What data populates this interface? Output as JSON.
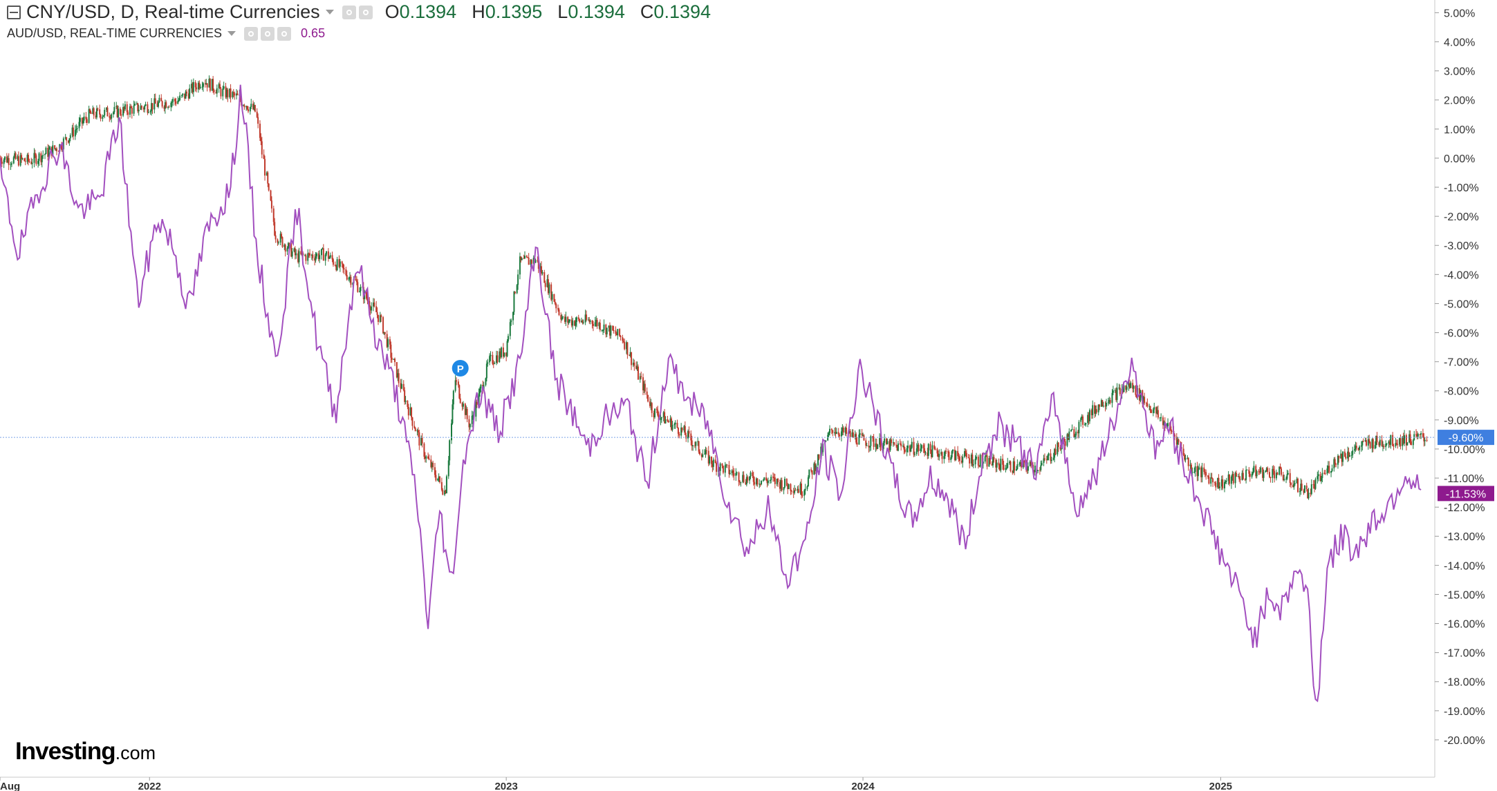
{
  "legend": {
    "main_title": "CNY/USD, D, Real-time Currencies",
    "open_label": "O",
    "open_value": "0.1394",
    "high_label": "H",
    "high_value": "0.1395",
    "low_label": "L",
    "low_value": "0.1394",
    "close_label": "C",
    "close_value": "0.1394",
    "compare_title": "AUD/USD, REAL-TIME CURRENCIES",
    "compare_value": "0.65"
  },
  "brand": {
    "logo_text": "Investing",
    "logo_suffix": ".com"
  },
  "colors": {
    "up": "#1b7a3e",
    "down": "#c0392b",
    "compare": "#a24fbf",
    "last_cny": "#3f7fe0",
    "last_aud": "#8e1a8e",
    "gridline": "#7aa2e8"
  },
  "chart_data": {
    "type": "line",
    "title": "CNY/USD, D, Real-time Currencies",
    "y_axis": {
      "unit": "%",
      "min": -20.5,
      "max": 5.2,
      "ticks": [
        5,
        4,
        3,
        2,
        1,
        0,
        -1,
        -2,
        -3,
        -4,
        -5,
        -6,
        -7,
        -8,
        -9,
        -10,
        -11,
        -12,
        -13,
        -14,
        -15,
        -16,
        -17,
        -18,
        -19,
        -20
      ],
      "tick_labels": [
        "5.00%",
        "4.00%",
        "3.00%",
        "2.00%",
        "1.00%",
        "0.00%",
        "-1.00%",
        "-2.00%",
        "-3.00%",
        "-4.00%",
        "-5.00%",
        "-6.00%",
        "-7.00%",
        "-8.00%",
        "-9.00%",
        "-10.00%",
        "-11.00%",
        "-12.00%",
        "-13.00%",
        "-14.00%",
        "-15.00%",
        "-16.00%",
        "-17.00%",
        "-18.00%",
        "-19.00%",
        "-20.00%"
      ]
    },
    "x_axis": {
      "start": "2021-08-01",
      "end": "2025-08-01",
      "ticks": [
        {
          "date": "2021-08-01",
          "label": "Aug"
        },
        {
          "date": "2022-01-01",
          "label": "2022"
        },
        {
          "date": "2023-01-01",
          "label": "2023"
        },
        {
          "date": "2024-01-01",
          "label": "2024"
        },
        {
          "date": "2025-01-01",
          "label": "2025"
        }
      ]
    },
    "series": [
      {
        "name": "CNY/USD",
        "style": "candles",
        "points": [
          [
            "2021-08-01",
            0.0
          ],
          [
            "2021-09-01",
            -0.1
          ],
          [
            "2021-10-01",
            0.4
          ],
          [
            "2021-11-01",
            1.5
          ],
          [
            "2021-12-01",
            1.6
          ],
          [
            "2022-01-01",
            1.8
          ],
          [
            "2022-02-01",
            2.0
          ],
          [
            "2022-02-25",
            2.7
          ],
          [
            "2022-03-15",
            2.3
          ],
          [
            "2022-04-01",
            2.1
          ],
          [
            "2022-04-20",
            1.6
          ],
          [
            "2022-05-10",
            -2.6
          ],
          [
            "2022-06-01",
            -3.4
          ],
          [
            "2022-07-01",
            -3.3
          ],
          [
            "2022-08-01",
            -4.3
          ],
          [
            "2022-08-25",
            -5.5
          ],
          [
            "2022-09-15",
            -7.8
          ],
          [
            "2022-10-10",
            -10.2
          ],
          [
            "2022-10-31",
            -11.5
          ],
          [
            "2022-11-10",
            -7.6
          ],
          [
            "2022-11-25",
            -9.2
          ],
          [
            "2022-12-15",
            -7.0
          ],
          [
            "2023-01-01",
            -6.6
          ],
          [
            "2023-01-15",
            -3.6
          ],
          [
            "2023-02-01",
            -3.5
          ],
          [
            "2023-03-01",
            -5.6
          ],
          [
            "2023-04-01",
            -5.6
          ],
          [
            "2023-05-01",
            -6.2
          ],
          [
            "2023-06-01",
            -8.7
          ],
          [
            "2023-07-01",
            -9.4
          ],
          [
            "2023-08-01",
            -10.5
          ],
          [
            "2023-09-01",
            -11.0
          ],
          [
            "2023-10-01",
            -11.1
          ],
          [
            "2023-11-01",
            -11.4
          ],
          [
            "2023-12-01",
            -9.3
          ],
          [
            "2024-01-01",
            -9.7
          ],
          [
            "2024-02-01",
            -9.9
          ],
          [
            "2024-03-01",
            -10.0
          ],
          [
            "2024-04-01",
            -10.2
          ],
          [
            "2024-05-01",
            -10.4
          ],
          [
            "2024-06-01",
            -10.6
          ],
          [
            "2024-07-01",
            -10.6
          ],
          [
            "2024-08-01",
            -9.5
          ],
          [
            "2024-09-01",
            -8.4
          ],
          [
            "2024-10-01",
            -7.8
          ],
          [
            "2024-10-20",
            -8.5
          ],
          [
            "2024-11-15",
            -9.5
          ],
          [
            "2024-12-01",
            -10.6
          ],
          [
            "2025-01-01",
            -11.2
          ],
          [
            "2025-02-01",
            -10.8
          ],
          [
            "2025-03-01",
            -10.8
          ],
          [
            "2025-04-01",
            -11.5
          ],
          [
            "2025-05-01",
            -10.3
          ],
          [
            "2025-06-01",
            -9.8
          ],
          [
            "2025-07-01",
            -9.7
          ],
          [
            "2025-08-01",
            -9.6
          ]
        ]
      },
      {
        "name": "AUD/USD",
        "style": "line",
        "points": [
          [
            "2021-08-01",
            -0.5
          ],
          [
            "2021-08-20",
            -3.3
          ],
          [
            "2021-09-10",
            -1.0
          ],
          [
            "2021-10-01",
            0.5
          ],
          [
            "2021-10-20",
            -1.8
          ],
          [
            "2021-11-10",
            -1.5
          ],
          [
            "2021-12-01",
            1.4
          ],
          [
            "2021-12-20",
            -5.0
          ],
          [
            "2022-01-10",
            -2.0
          ],
          [
            "2022-01-25",
            -3.0
          ],
          [
            "2022-02-10",
            -5.2
          ],
          [
            "2022-03-01",
            -2.5
          ],
          [
            "2022-03-25",
            -1.0
          ],
          [
            "2022-04-05",
            2.5
          ],
          [
            "2022-04-20",
            -3.0
          ],
          [
            "2022-05-10",
            -7.0
          ],
          [
            "2022-06-01",
            -1.8
          ],
          [
            "2022-06-20",
            -6.0
          ],
          [
            "2022-07-10",
            -8.8
          ],
          [
            "2022-08-01",
            -3.5
          ],
          [
            "2022-08-20",
            -6.0
          ],
          [
            "2022-09-10",
            -8.0
          ],
          [
            "2022-10-01",
            -11.5
          ],
          [
            "2022-10-13",
            -16.0
          ],
          [
            "2022-10-25",
            -12.0
          ],
          [
            "2022-11-05",
            -14.8
          ],
          [
            "2022-11-20",
            -10.0
          ],
          [
            "2022-12-05",
            -8.0
          ],
          [
            "2022-12-25",
            -9.4
          ],
          [
            "2023-01-15",
            -7.0
          ],
          [
            "2023-02-01",
            -3.0
          ],
          [
            "2023-02-20",
            -7.5
          ],
          [
            "2023-03-10",
            -8.8
          ],
          [
            "2023-03-25",
            -10.0
          ],
          [
            "2023-04-10",
            -9.0
          ],
          [
            "2023-05-05",
            -8.5
          ],
          [
            "2023-05-25",
            -11.3
          ],
          [
            "2023-06-15",
            -7.0
          ],
          [
            "2023-07-10",
            -8.5
          ],
          [
            "2023-07-25",
            -9.0
          ],
          [
            "2023-08-15",
            -11.7
          ],
          [
            "2023-09-05",
            -13.5
          ],
          [
            "2023-09-25",
            -12.0
          ],
          [
            "2023-10-15",
            -14.5
          ],
          [
            "2023-11-05",
            -13.0
          ],
          [
            "2023-11-20",
            -10.0
          ],
          [
            "2023-12-10",
            -11.6
          ],
          [
            "2023-12-28",
            -7.0
          ],
          [
            "2024-01-15",
            -9.0
          ],
          [
            "2024-02-01",
            -11.0
          ],
          [
            "2024-02-20",
            -12.5
          ],
          [
            "2024-03-10",
            -11.0
          ],
          [
            "2024-03-25",
            -11.5
          ],
          [
            "2024-04-15",
            -13.3
          ],
          [
            "2024-05-01",
            -10.5
          ],
          [
            "2024-05-20",
            -9.2
          ],
          [
            "2024-06-10",
            -10.0
          ],
          [
            "2024-06-25",
            -10.7
          ],
          [
            "2024-07-15",
            -8.3
          ],
          [
            "2024-08-05",
            -12.0
          ],
          [
            "2024-08-20",
            -11.3
          ],
          [
            "2024-09-10",
            -9.5
          ],
          [
            "2024-09-30",
            -7.1
          ],
          [
            "2024-10-10",
            -7.8
          ],
          [
            "2024-10-25",
            -10.0
          ],
          [
            "2024-11-10",
            -9.2
          ],
          [
            "2024-11-25",
            -10.6
          ],
          [
            "2024-12-10",
            -11.7
          ],
          [
            "2024-12-31",
            -13.5
          ],
          [
            "2025-01-20",
            -15.0
          ],
          [
            "2025-02-05",
            -16.5
          ],
          [
            "2025-02-20",
            -15.0
          ],
          [
            "2025-03-05",
            -15.5
          ],
          [
            "2025-03-20",
            -14.0
          ],
          [
            "2025-04-01",
            -15.2
          ],
          [
            "2025-04-09",
            -19.2
          ],
          [
            "2025-04-20",
            -14.0
          ],
          [
            "2025-05-05",
            -13.0
          ],
          [
            "2025-05-20",
            -13.5
          ],
          [
            "2025-06-05",
            -12.5
          ],
          [
            "2025-06-20",
            -12.0
          ],
          [
            "2025-07-10",
            -10.8
          ],
          [
            "2025-07-25",
            -11.53
          ]
        ]
      }
    ],
    "last_values": [
      {
        "series": "CNY/USD",
        "value": -9.6,
        "label": "-9.60%"
      },
      {
        "series": "AUD/USD",
        "value": -11.53,
        "label": "-11.53%"
      }
    ],
    "markers": [
      {
        "date": "2022-11-15",
        "label": "P"
      }
    ],
    "grid": false,
    "legend_position": "top-left"
  }
}
